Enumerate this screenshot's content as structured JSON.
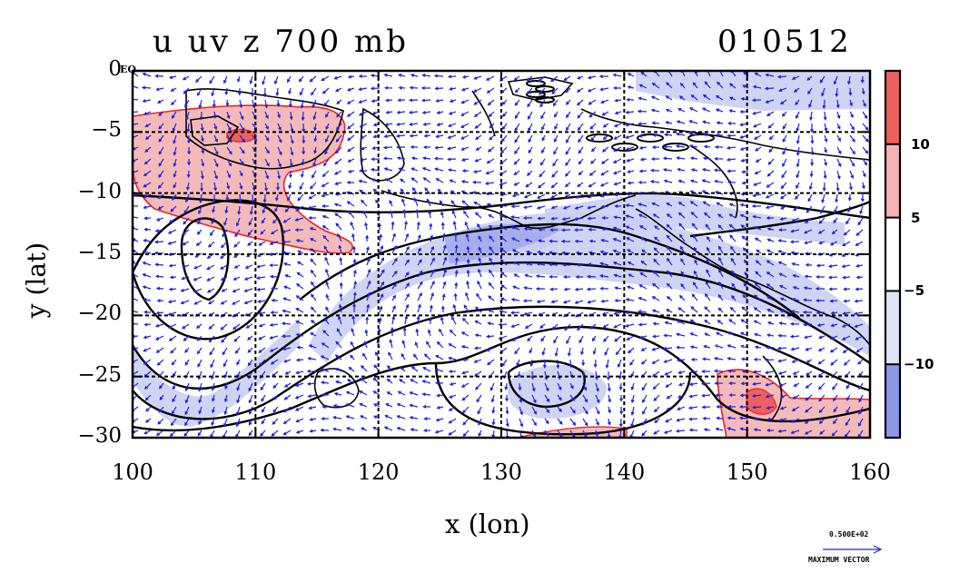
{
  "title": {
    "left": "u uv z 700 mb",
    "right": "010512"
  },
  "axes": {
    "xlabel": "x (lon)",
    "ylabel": "y (lat)",
    "xticks": [
      "100",
      "110",
      "120",
      "130",
      "140",
      "150",
      "160"
    ],
    "yticks": [
      "0",
      "−5",
      "−10",
      "−15",
      "−20",
      "−25",
      "−30"
    ],
    "eq_label": "EQ",
    "xlim": [
      100,
      160
    ],
    "ylim": [
      -30,
      0
    ]
  },
  "colorbar": {
    "ticks": [
      "10",
      "5",
      "−5",
      "−10"
    ],
    "colors": [
      "#ee6060",
      "#f5b3b3",
      "#ffffff",
      "#dfe4f8",
      "#8d98e8"
    ]
  },
  "vector_key": {
    "value": "0.500E+02",
    "label": "MAXIMUM VECTOR",
    "color": "#2020ee"
  },
  "colors": {
    "positive": "#f4baba",
    "positive_strong": "#ee6060",
    "negative": "#c7ccf3",
    "negative_strong": "#8d98e8",
    "contour": "#000000",
    "vectors": "#2222dd",
    "coast": "#000000"
  }
}
